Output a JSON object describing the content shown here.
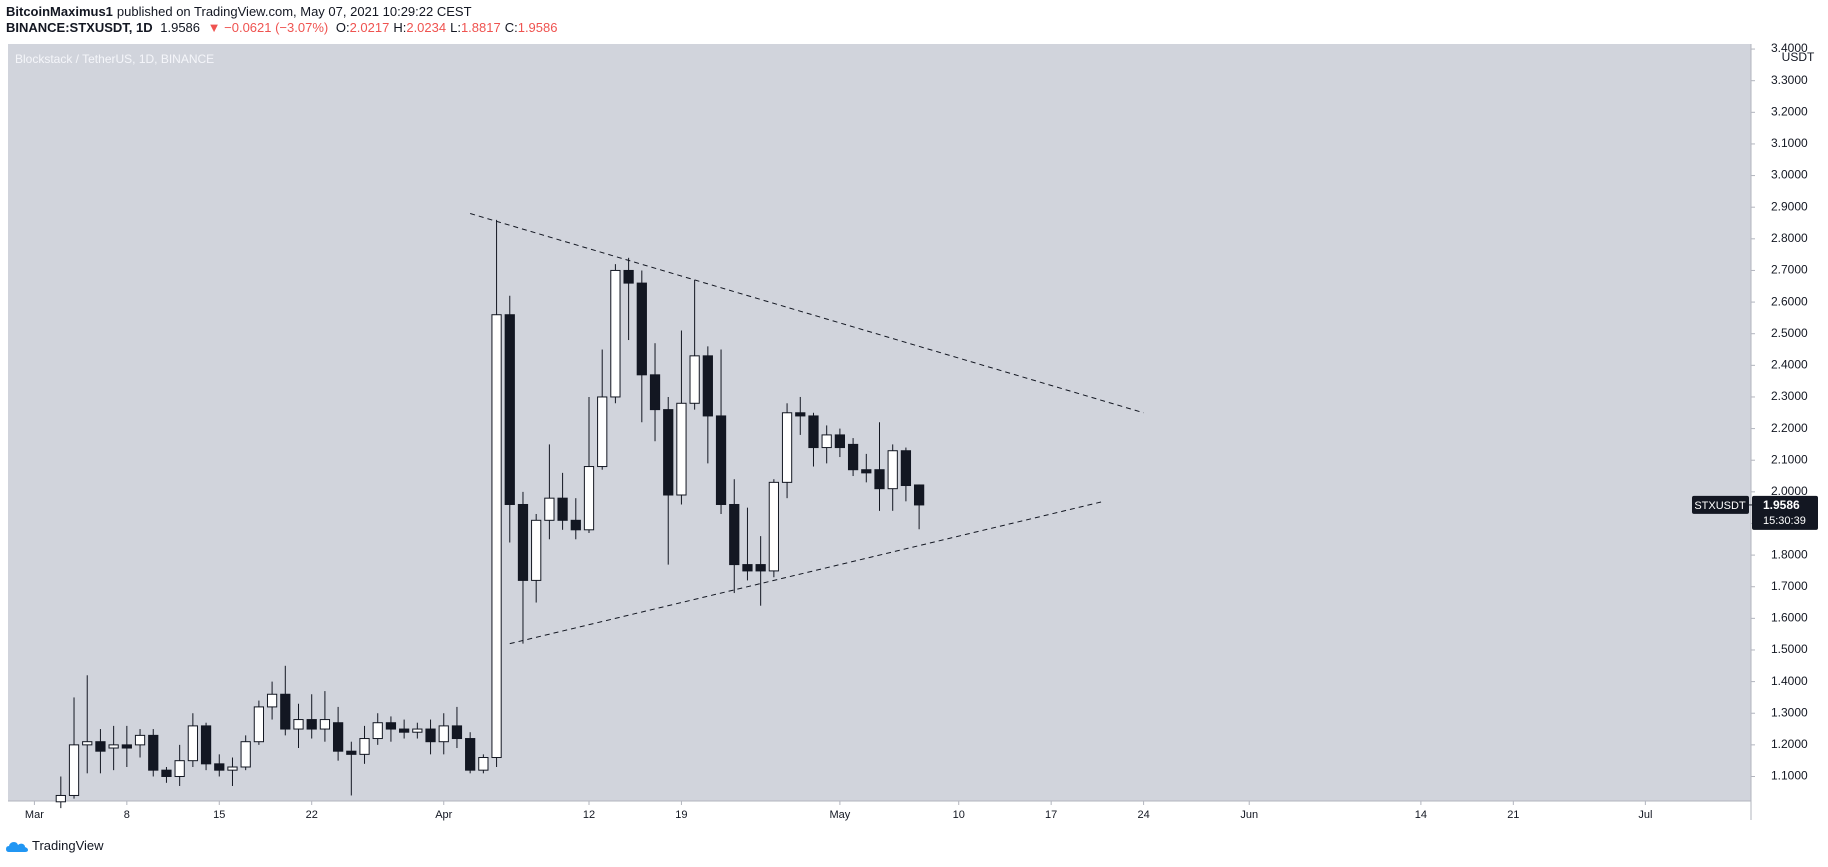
{
  "header": {
    "author": "BitcoinMaximus1",
    "published": "published on TradingView.com, May 07, 2021 10:29:22 CEST",
    "symbol": "BINANCE:STXUSDT, 1D",
    "last": "1.9586",
    "arrow": "▼",
    "change": "−0.0621 (−3.07%)",
    "ohlc": [
      {
        "label": "O:",
        "value": "2.0217"
      },
      {
        "label": "H:",
        "value": "2.0234"
      },
      {
        "label": "L:",
        "value": "1.8817"
      },
      {
        "label": "C:",
        "value": "1.9586"
      }
    ]
  },
  "footer": {
    "brand": "TradingView"
  },
  "chart_data": {
    "type": "candlestick",
    "title": "Blockstack / TetherUS, 1D, BINANCE",
    "y_unit": "USDT",
    "grid": false,
    "up_color": "#ffffff",
    "down_color": "#131722",
    "background": "#d1d4dc",
    "x": [
      "2021-03-03",
      "2021-03-04",
      "2021-03-05",
      "2021-03-06",
      "2021-03-07",
      "2021-03-08",
      "2021-03-09",
      "2021-03-10",
      "2021-03-11",
      "2021-03-12",
      "2021-03-13",
      "2021-03-14",
      "2021-03-15",
      "2021-03-16",
      "2021-03-17",
      "2021-03-18",
      "2021-03-19",
      "2021-03-20",
      "2021-03-21",
      "2021-03-22",
      "2021-03-23",
      "2021-03-24",
      "2021-03-25",
      "2021-03-26",
      "2021-03-27",
      "2021-03-28",
      "2021-03-29",
      "2021-03-30",
      "2021-03-31",
      "2021-04-01",
      "2021-04-02",
      "2021-04-03",
      "2021-04-04",
      "2021-04-05",
      "2021-04-06",
      "2021-04-07",
      "2021-04-08",
      "2021-04-09",
      "2021-04-10",
      "2021-04-11",
      "2021-04-12",
      "2021-04-13",
      "2021-04-14",
      "2021-04-15",
      "2021-04-16",
      "2021-04-17",
      "2021-04-18",
      "2021-04-19",
      "2021-04-20",
      "2021-04-21",
      "2021-04-22",
      "2021-04-23",
      "2021-04-24",
      "2021-04-25",
      "2021-04-26",
      "2021-04-27",
      "2021-04-28",
      "2021-04-29",
      "2021-04-30",
      "2021-05-01",
      "2021-05-02",
      "2021-05-03",
      "2021-05-04",
      "2021-05-05",
      "2021-05-06",
      "2021-05-07"
    ],
    "open": [
      1.02,
      1.04,
      1.2,
      1.21,
      1.19,
      1.2,
      1.2,
      1.23,
      1.12,
      1.1,
      1.15,
      1.26,
      1.14,
      1.12,
      1.13,
      1.21,
      1.32,
      1.36,
      1.25,
      1.28,
      1.25,
      1.27,
      1.18,
      1.17,
      1.22,
      1.27,
      1.25,
      1.24,
      1.25,
      1.21,
      1.26,
      1.22,
      1.12,
      1.16,
      2.56,
      1.96,
      1.72,
      1.91,
      1.98,
      1.91,
      1.88,
      2.08,
      2.3,
      2.7,
      2.66,
      2.37,
      2.26,
      1.99,
      2.28,
      2.43,
      2.24,
      1.96,
      1.77,
      1.77,
      1.75,
      2.03,
      2.25,
      2.24,
      2.14,
      2.18,
      2.15,
      2.07,
      2.07,
      2.01,
      2.13,
      2.0217
    ],
    "high": [
      1.1,
      1.35,
      1.42,
      1.25,
      1.26,
      1.26,
      1.25,
      1.25,
      1.13,
      1.2,
      1.3,
      1.27,
      1.17,
      1.16,
      1.23,
      1.34,
      1.4,
      1.45,
      1.33,
      1.36,
      1.37,
      1.32,
      1.21,
      1.26,
      1.3,
      1.29,
      1.28,
      1.27,
      1.28,
      1.3,
      1.32,
      1.24,
      1.17,
      2.86,
      2.62,
      2.0,
      1.93,
      2.15,
      2.06,
      1.98,
      2.3,
      2.45,
      2.72,
      2.74,
      2.7,
      2.47,
      2.3,
      2.51,
      2.67,
      2.46,
      2.45,
      2.04,
      1.95,
      1.86,
      2.04,
      2.28,
      2.3,
      2.25,
      2.21,
      2.2,
      2.17,
      2.12,
      2.22,
      2.15,
      2.14,
      2.0234
    ],
    "low": [
      1.0,
      1.03,
      1.11,
      1.11,
      1.12,
      1.13,
      1.16,
      1.1,
      1.08,
      1.07,
      1.13,
      1.12,
      1.1,
      1.07,
      1.12,
      1.2,
      1.28,
      1.23,
      1.19,
      1.22,
      1.21,
      1.15,
      1.04,
      1.14,
      1.2,
      1.21,
      1.22,
      1.22,
      1.17,
      1.17,
      1.19,
      1.11,
      1.11,
      1.13,
      1.84,
      1.52,
      1.65,
      1.85,
      1.88,
      1.85,
      1.87,
      2.07,
      2.28,
      2.48,
      2.22,
      2.16,
      1.77,
      1.96,
      2.26,
      2.09,
      1.93,
      1.68,
      1.72,
      1.64,
      1.73,
      1.98,
      2.18,
      2.08,
      2.09,
      2.11,
      2.05,
      2.03,
      1.94,
      1.94,
      1.97,
      1.8817
    ],
    "close": [
      1.04,
      1.2,
      1.21,
      1.18,
      1.2,
      1.19,
      1.23,
      1.12,
      1.1,
      1.15,
      1.26,
      1.14,
      1.12,
      1.13,
      1.21,
      1.32,
      1.36,
      1.25,
      1.28,
      1.25,
      1.28,
      1.18,
      1.17,
      1.22,
      1.27,
      1.25,
      1.24,
      1.25,
      1.21,
      1.26,
      1.22,
      1.12,
      1.16,
      2.56,
      1.96,
      1.72,
      1.91,
      1.98,
      1.91,
      1.88,
      2.08,
      2.3,
      2.7,
      2.66,
      2.37,
      2.26,
      1.99,
      2.28,
      2.43,
      2.24,
      1.96,
      1.77,
      1.75,
      1.75,
      2.03,
      2.25,
      2.24,
      2.14,
      2.18,
      2.14,
      2.07,
      2.06,
      2.01,
      2.13,
      2.02,
      1.9586
    ],
    "trendlines": [
      {
        "style": "dashed",
        "x": [
          "2021-04-03",
          "2021-05-24"
        ],
        "y": [
          2.88,
          2.25
        ]
      },
      {
        "style": "dashed",
        "x": [
          "2021-04-06",
          "2021-05-21"
        ],
        "y": [
          1.52,
          1.97
        ]
      }
    ],
    "xlim": [
      "2021-02-27",
      "2021-07-09"
    ],
    "xticks": [
      {
        "value": "2021-03-01",
        "label": "Mar"
      },
      {
        "value": "2021-03-08",
        "label": "8"
      },
      {
        "value": "2021-03-15",
        "label": "15"
      },
      {
        "value": "2021-03-22",
        "label": "22"
      },
      {
        "value": "2021-04-01",
        "label": "Apr"
      },
      {
        "value": "2021-04-12",
        "label": "12"
      },
      {
        "value": "2021-04-19",
        "label": "19"
      },
      {
        "value": "2021-05-01",
        "label": "May"
      },
      {
        "value": "2021-05-10",
        "label": "10"
      },
      {
        "value": "2021-05-17",
        "label": "17"
      },
      {
        "value": "2021-05-24",
        "label": "24"
      },
      {
        "value": "2021-06-01",
        "label": "Jun"
      },
      {
        "value": "2021-06-14",
        "label": "14"
      },
      {
        "value": "2021-06-21",
        "label": "21"
      },
      {
        "value": "2021-07-01",
        "label": "Jul"
      }
    ],
    "ylim": [
      1.0225,
      3.416
    ],
    "yticks": [
      {
        "value": 1.1,
        "label": "1.1000"
      },
      {
        "value": 1.2,
        "label": "1.2000"
      },
      {
        "value": 1.3,
        "label": "1.3000"
      },
      {
        "value": 1.4,
        "label": "1.4000"
      },
      {
        "value": 1.5,
        "label": "1.5000"
      },
      {
        "value": 1.6,
        "label": "1.6000"
      },
      {
        "value": 1.7,
        "label": "1.7000"
      },
      {
        "value": 1.8,
        "label": "1.8000"
      },
      {
        "value": 1.9,
        "label": "1.9000"
      },
      {
        "value": 2.0,
        "label": "2.0000"
      },
      {
        "value": 2.1,
        "label": "2.1000"
      },
      {
        "value": 2.2,
        "label": "2.2000"
      },
      {
        "value": 2.3,
        "label": "2.3000"
      },
      {
        "value": 2.4,
        "label": "2.4000"
      },
      {
        "value": 2.5,
        "label": "2.5000"
      },
      {
        "value": 2.6,
        "label": "2.6000"
      },
      {
        "value": 2.7,
        "label": "2.7000"
      },
      {
        "value": 2.8,
        "label": "2.8000"
      },
      {
        "value": 2.9,
        "label": "2.9000"
      },
      {
        "value": 3.0,
        "label": "3.0000"
      },
      {
        "value": 3.1,
        "label": "3.1000"
      },
      {
        "value": 3.2,
        "label": "3.2000"
      },
      {
        "value": 3.3,
        "label": "3.3000"
      },
      {
        "value": 3.4,
        "label": "3.4000"
      }
    ],
    "last_price": {
      "symbol": "STXUSDT",
      "value": 1.9586,
      "countdown": "15:30:39",
      "color": "#131722"
    }
  }
}
